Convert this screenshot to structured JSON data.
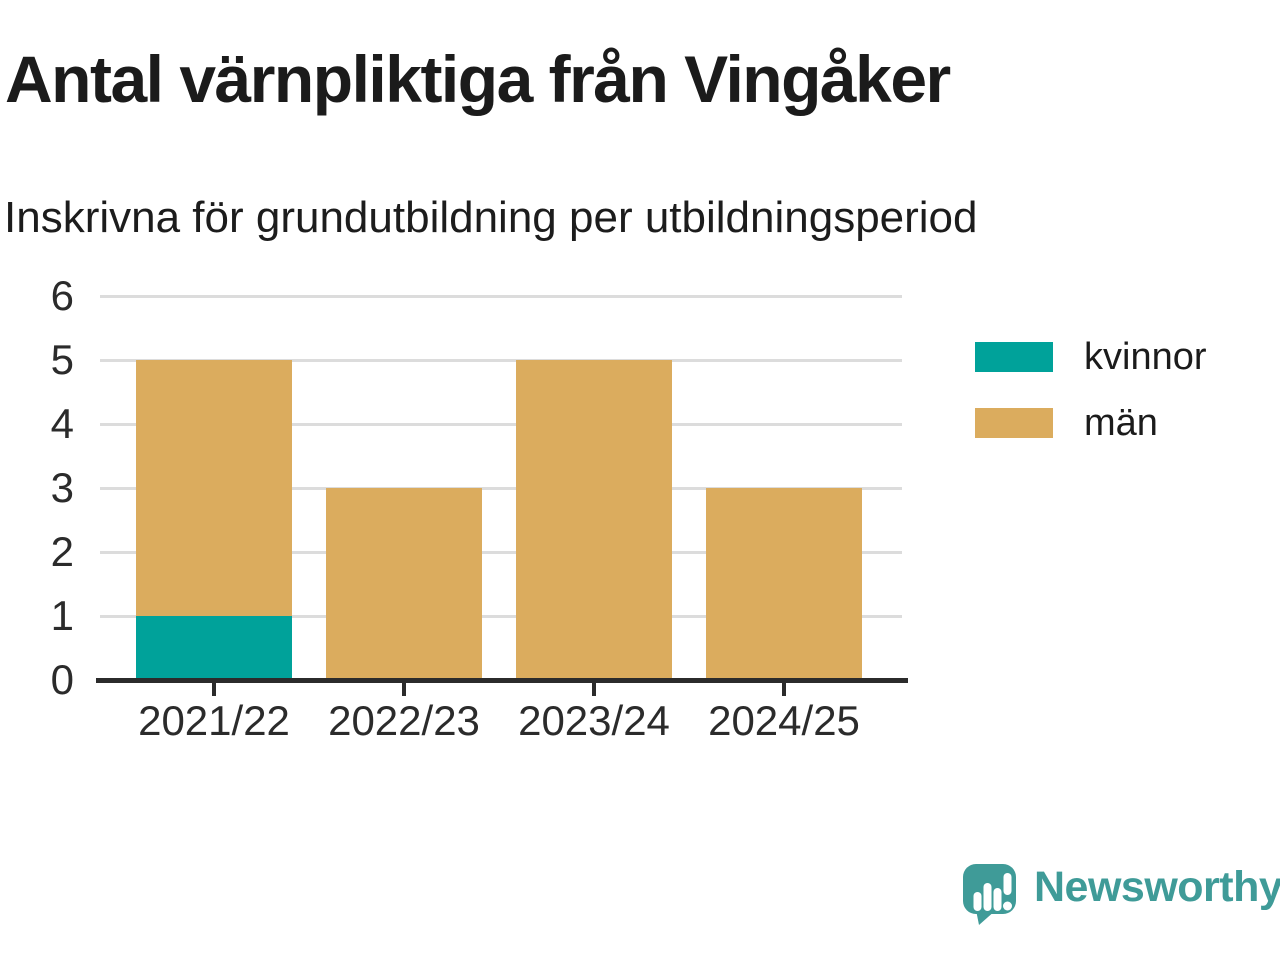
{
  "header": {
    "title": "Antal värnpliktiga från Vingåker",
    "subtitle": "Inskrivna för grundutbildning per utbildningsperiod"
  },
  "chart_data": {
    "type": "bar",
    "stacked": true,
    "title": "Antal värnpliktiga från Vingåker",
    "subtitle": "Inskrivna för grundutbildning per utbildningsperiod",
    "categories": [
      "2021/22",
      "2022/23",
      "2023/24",
      "2024/25"
    ],
    "series": [
      {
        "name": "kvinnor",
        "color": "#00A29A",
        "values": [
          1,
          0,
          0,
          0
        ]
      },
      {
        "name": "män",
        "color": "#DBAC5E",
        "values": [
          4,
          3,
          5,
          3
        ]
      }
    ],
    "totals": [
      5,
      3,
      5,
      3
    ],
    "xlabel": "",
    "ylabel": "",
    "ylim": [
      0,
      6
    ],
    "yticks": [
      0,
      1,
      2,
      3,
      4,
      5,
      6
    ],
    "grid": true,
    "gridline_color": "#dcdcdc",
    "axis_color": "#2b2b2b",
    "legend_position": "right"
  },
  "footer": {
    "brand": "Newsworthy",
    "brand_color": "#3F9B98",
    "logo_icon": "bar-chart-speech-bubble-icon"
  }
}
